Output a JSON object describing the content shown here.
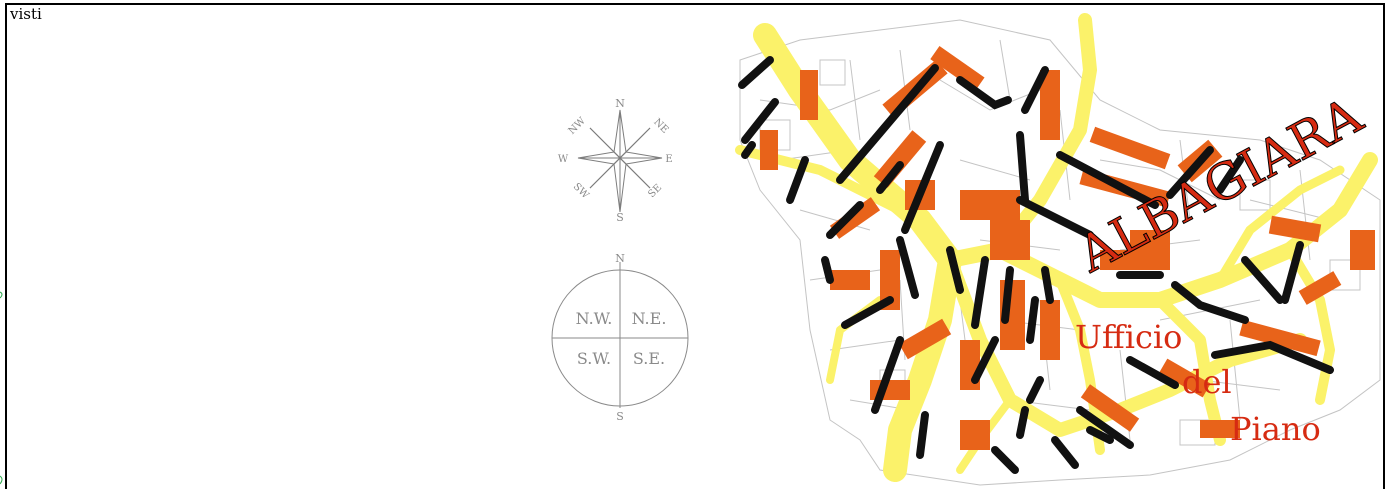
{
  "page": {
    "label": "visti"
  },
  "compass_rose": {
    "n": "N",
    "s": "S",
    "e": "E",
    "w": "W",
    "ne": "NE",
    "nw": "NW",
    "se": "SE",
    "sw": "SW"
  },
  "quadrant_circle": {
    "n": "N",
    "s": "S",
    "nw": "N.W.",
    "ne": "N.E.",
    "sw": "S.W.",
    "se": "S.E."
  },
  "map": {
    "district": "ALBAGIARA",
    "office": [
      "Ufficio",
      "del",
      "Piano"
    ],
    "colors": {
      "streets": "#fbf26a",
      "buildings": "#e8631a",
      "paths": "#111111",
      "parcels": "#bdbdbd",
      "title": "#d62b12"
    }
  }
}
